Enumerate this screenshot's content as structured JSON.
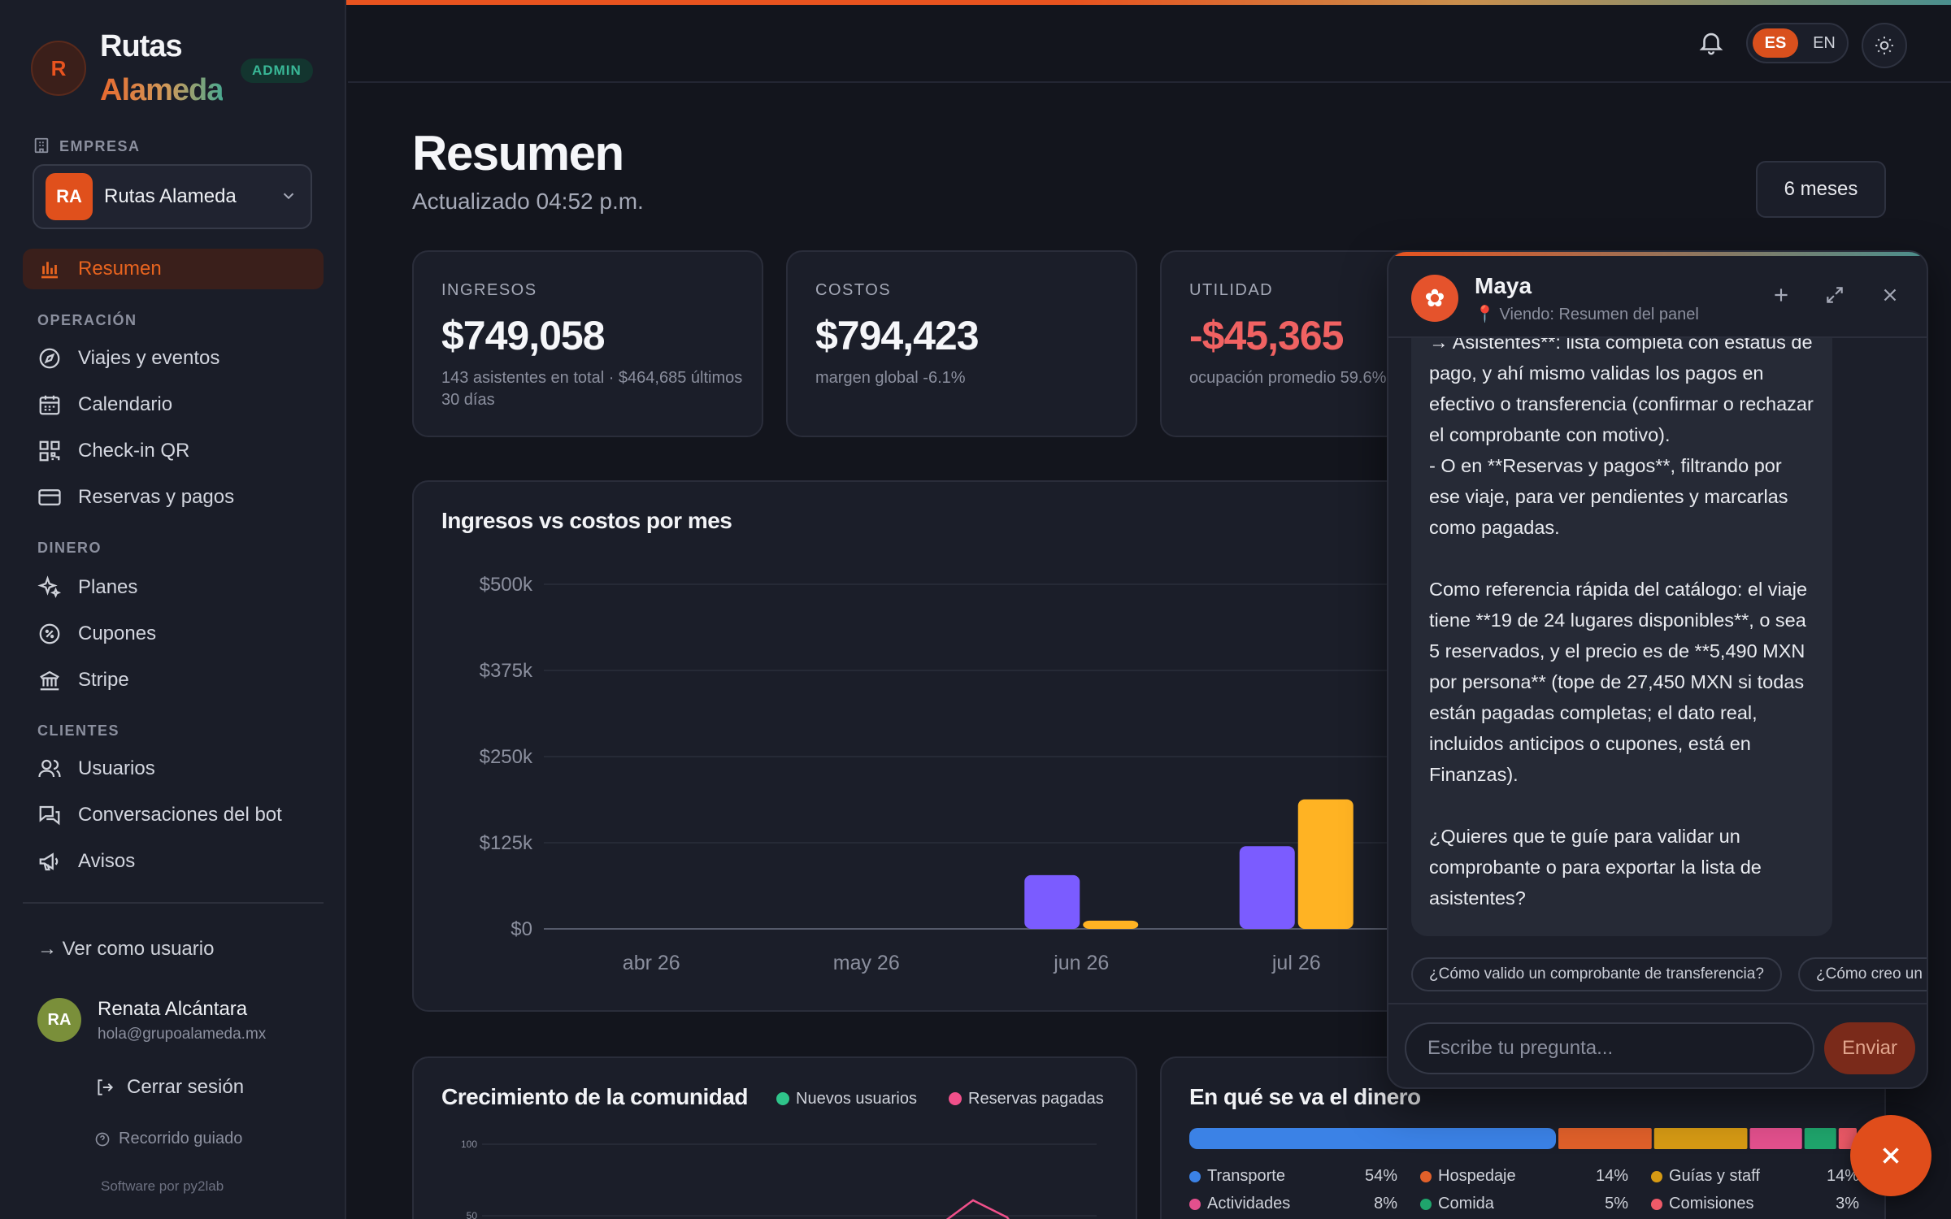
{
  "brand": {
    "initial": "R",
    "line1": "Rutas",
    "line2": "Alameda",
    "badge": "ADMIN"
  },
  "sidebar": {
    "company_label": "EMPRESA",
    "company": {
      "initials": "RA",
      "name": "Rutas Alameda"
    },
    "active": "Resumen",
    "sections": [
      {
        "label": "OPERACIÓN",
        "items": [
          "Viajes y eventos",
          "Calendario",
          "Check-in QR",
          "Reservas y pagos"
        ]
      },
      {
        "label": "DINERO",
        "items": [
          "Planes",
          "Cupones",
          "Stripe"
        ]
      },
      {
        "label": "CLIENTES",
        "items": [
          "Usuarios",
          "Conversaciones del bot",
          "Avisos"
        ]
      }
    ],
    "view_as_user": "→ Ver como usuario",
    "user": {
      "initials": "RA",
      "name": "Renata Alcántara",
      "email": "hola@grupoalameda.mx"
    },
    "logout": "Cerrar sesión",
    "tour": "Recorrido guiado",
    "footer": "Software por py2lab"
  },
  "header": {
    "lang_active": "ES",
    "lang_other": "EN"
  },
  "page": {
    "title": "Resumen",
    "updated": "Actualizado 04:52 p.m.",
    "period": "6 meses"
  },
  "kpis": [
    {
      "label": "INGRESOS",
      "value": "$749,058",
      "sub": "143 asistentes en total · $464,685 últimos 30 días"
    },
    {
      "label": "COSTOS",
      "value": "$794,423",
      "sub": "margen global -6.1%"
    },
    {
      "label": "UTILIDAD",
      "value": "-$45,365",
      "sub": "ocupación promedio 59.6%",
      "color": "#f06262"
    }
  ],
  "chart_data": [
    {
      "type": "bar",
      "title": "Ingresos vs costos por mes",
      "categories": [
        "abr 26",
        "may 26",
        "jun 26",
        "jul 26"
      ],
      "series": [
        {
          "color": "#7b5cff",
          "values": [
            0,
            0,
            78000,
            120000
          ]
        },
        {
          "color": "#ffb323",
          "values": [
            0,
            0,
            12000,
            188000
          ]
        }
      ],
      "yticks": [
        "$0",
        "$125k",
        "$250k",
        "$375k",
        "$500k"
      ],
      "ylim": [
        0,
        500000
      ]
    },
    {
      "type": "line",
      "title": "Crecimiento de la comunidad",
      "series": [
        {
          "name": "Nuevos usuarios",
          "color": "#2fc48a"
        },
        {
          "name": "Reservas pagadas",
          "color": "#f0508a"
        }
      ],
      "yticks": [
        "100",
        "50"
      ]
    },
    {
      "type": "bar",
      "title": "En qué se va el dinero",
      "series": [
        {
          "name": "Transporte",
          "value": 54,
          "pct": "54%",
          "color": "#3b82e6"
        },
        {
          "name": "Hospedaje",
          "value": 14,
          "pct": "14%",
          "color": "#e0602a"
        },
        {
          "name": "Guías y staff",
          "value": 14,
          "pct": "14%",
          "color": "#d69a14"
        },
        {
          "name": "Actividades",
          "value": 8,
          "pct": "8%",
          "color": "#e3508d"
        },
        {
          "name": "Comida",
          "value": 5,
          "pct": "5%",
          "color": "#1fa56c"
        },
        {
          "name": "Comisiones",
          "value": 3,
          "pct": "3%",
          "color": "#ee5a68"
        }
      ]
    }
  ],
  "chat": {
    "name": "Maya",
    "context": "📍 Viendo: Resumen del panel",
    "message": "→ Asistentes**: lista completa con estatus de pago, y ahí mismo validas los pagos en efectivo o transferencia (confirmar o rechazar el comprobante con motivo).\n- O en **Reservas y pagos**, filtrando por ese viaje, para ver pendientes y marcarlas como pagadas.\n\nComo referencia rápida del catálogo: el viaje tiene **19 de 24 lugares disponibles**, o sea 5 reservados, y el precio es de **5,490 MXN por persona** (tope de 27,450 MXN si todas están pagadas completas; el dato real, incluidos anticipos o cupones, está en Finanzas).\n\n¿Quieres que te guíe para validar un comprobante o para exportar la lista de asistentes?",
    "suggestions": [
      "¿Cómo valido un comprobante de transferencia?",
      "¿Cómo creo un"
    ],
    "input_placeholder": "Escribe tu pregunta...",
    "send_label": "Enviar"
  }
}
